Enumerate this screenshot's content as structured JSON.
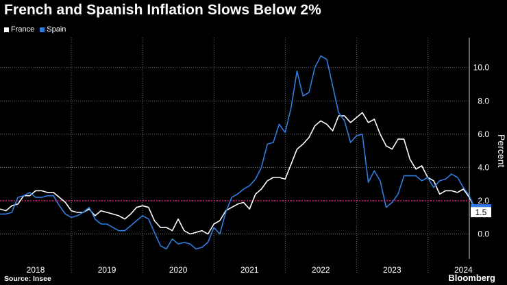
{
  "title": "French and Spanish Inflation Slows Below 2%",
  "source": "Source: Insee",
  "brand": "Bloomberg",
  "colors": {
    "france": "#ffffff",
    "spain": "#2f7de1",
    "reference": "#e3147c",
    "grid": "#8a8a8a"
  },
  "chart_data": {
    "type": "line",
    "title": "French and Spanish Inflation Slows Below 2%",
    "ylabel": "Percent",
    "xlabel": "",
    "x_ticks": [
      "2018",
      "2019",
      "2020",
      "2021",
      "2022",
      "2023",
      "2024"
    ],
    "y_ticks": [
      "0.0",
      "2.0",
      "4.0",
      "6.0",
      "8.0",
      "10.0"
    ],
    "ylim": [
      -1.5,
      11.8
    ],
    "xlim": [
      2018.0,
      2024.583
    ],
    "grid": true,
    "legend": "top-left",
    "reference_line": 2.0,
    "last_value_label": "1.5",
    "series": [
      {
        "name": "France",
        "x_start": 2018.0,
        "step": 0.08333,
        "values": [
          1.5,
          1.4,
          1.7,
          1.8,
          2.3,
          2.3,
          2.6,
          2.6,
          2.5,
          2.5,
          2.2,
          1.9,
          1.4,
          1.3,
          1.3,
          1.5,
          1.1,
          1.4,
          1.3,
          1.2,
          1.1,
          0.9,
          1.2,
          1.6,
          1.7,
          1.6,
          0.8,
          0.4,
          0.4,
          0.2,
          0.9,
          0.2,
          0.0,
          0.1,
          0.2,
          0.0,
          0.6,
          0.8,
          1.4,
          1.6,
          1.8,
          1.9,
          1.5,
          2.4,
          2.7,
          3.2,
          3.4,
          3.4,
          3.3,
          4.2,
          5.1,
          5.4,
          5.8,
          6.5,
          6.8,
          6.6,
          6.2,
          7.1,
          7.1,
          6.7,
          7.0,
          7.3,
          6.7,
          6.9,
          6.0,
          5.3,
          5.1,
          5.7,
          5.7,
          4.5,
          3.9,
          4.1,
          3.4,
          3.2,
          2.4,
          2.6,
          2.6,
          2.5,
          2.7,
          2.2,
          1.5
        ]
      },
      {
        "name": "Spain",
        "x_start": 2018.0,
        "step": 0.08333,
        "values": [
          1.2,
          1.2,
          1.3,
          2.2,
          2.3,
          2.5,
          2.2,
          2.2,
          2.3,
          2.3,
          1.7,
          1.2,
          1.0,
          1.1,
          1.3,
          1.6,
          0.9,
          0.6,
          0.6,
          0.4,
          0.2,
          0.2,
          0.5,
          0.8,
          1.1,
          0.9,
          0.1,
          -0.7,
          -0.9,
          -0.3,
          -0.6,
          -0.5,
          -0.6,
          -0.9,
          -0.8,
          -0.5,
          0.4,
          0.0,
          1.3,
          2.2,
          2.4,
          2.7,
          2.9,
          3.3,
          4.0,
          5.4,
          5.5,
          6.6,
          6.1,
          7.6,
          9.8,
          8.3,
          8.5,
          10.0,
          10.7,
          10.5,
          8.9,
          7.3,
          6.8,
          5.5,
          5.9,
          6.0,
          3.1,
          3.8,
          3.2,
          1.6,
          1.9,
          2.4,
          3.5,
          3.5,
          3.5,
          3.2,
          3.4,
          2.8,
          3.2,
          3.3,
          3.6,
          3.4,
          2.8,
          2.3,
          1.5
        ]
      }
    ]
  }
}
